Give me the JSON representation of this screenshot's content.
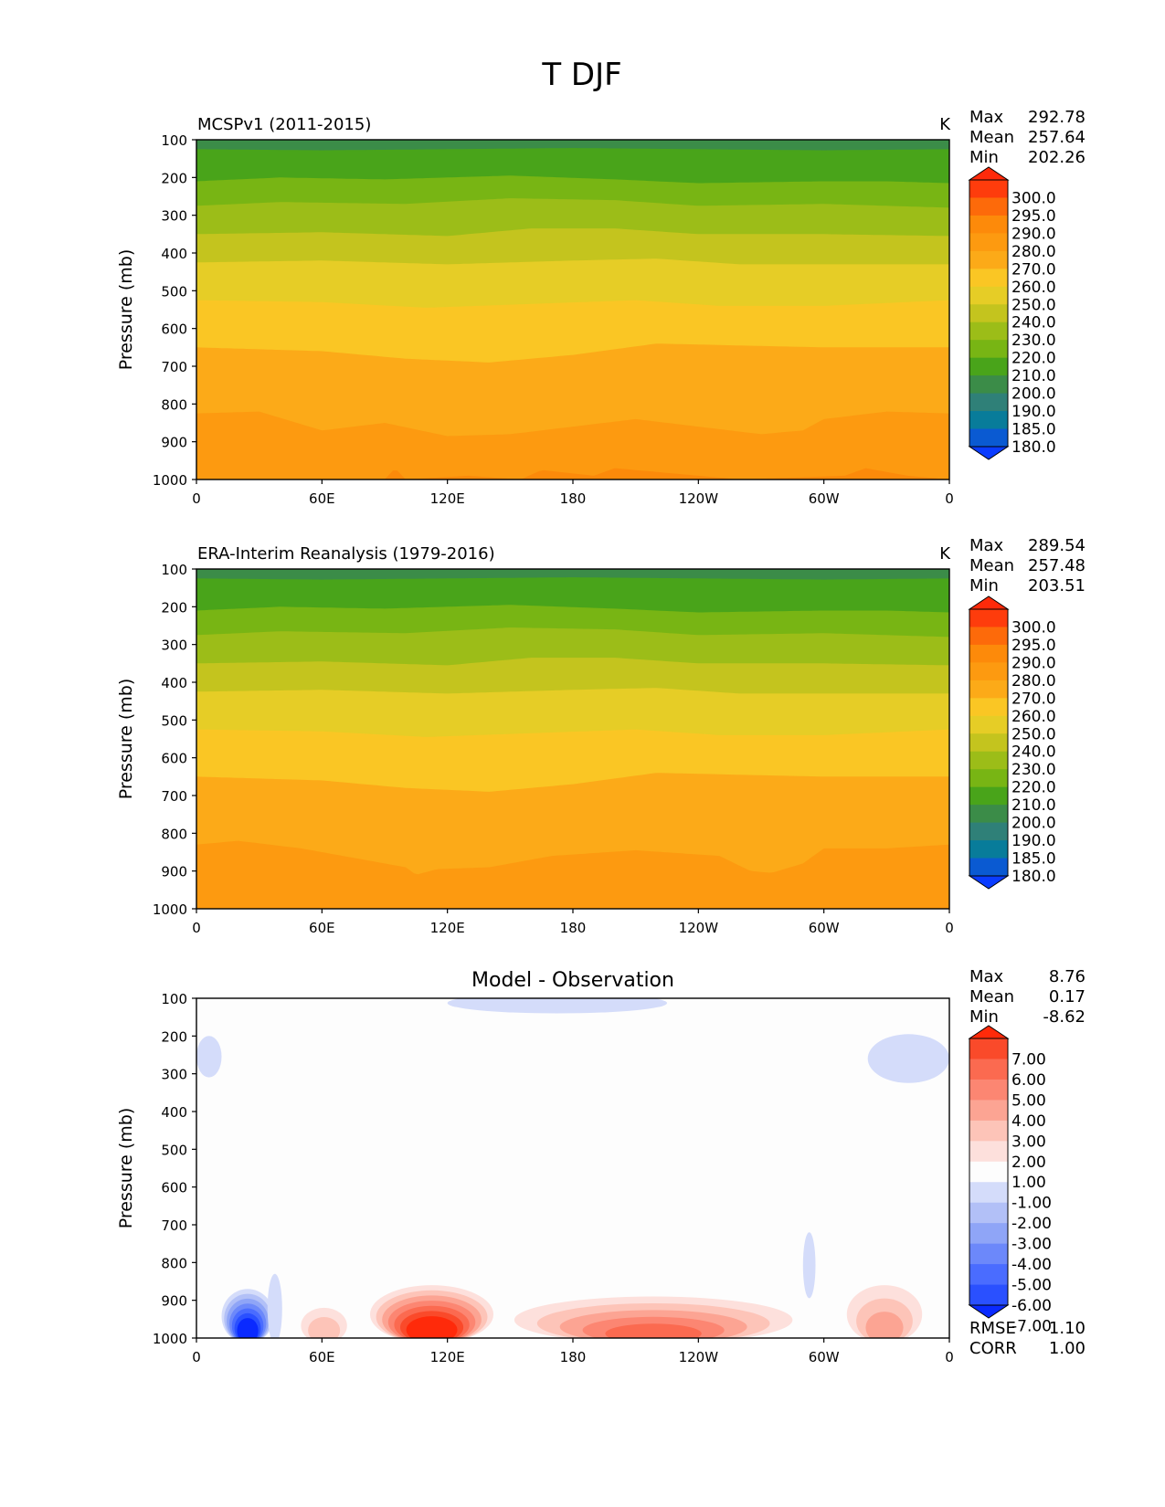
{
  "title": "T DJF",
  "chart_data": [
    {
      "type": "heatmap",
      "panel": "model",
      "title": "MCSPv1 (2011-2015)",
      "units": "K",
      "ylabel": "Pressure (mb)",
      "xlabel": "",
      "x_ticks": [
        "0",
        "60E",
        "120E",
        "180",
        "120W",
        "60W",
        "0"
      ],
      "y_ticks": [
        "100",
        "200",
        "300",
        "400",
        "500",
        "600",
        "700",
        "800",
        "900",
        "1000"
      ],
      "xlim": [
        0,
        360
      ],
      "ylim": [
        1000,
        100
      ],
      "grid": false,
      "stats": [
        {
          "label": "Max",
          "value": "292.78"
        },
        {
          "label": "Mean",
          "value": "257.64"
        },
        {
          "label": "Min",
          "value": "202.26"
        }
      ],
      "colorbar_labels": [
        "300.0",
        "295.0",
        "290.0",
        "280.0",
        "270.0",
        "260.0",
        "250.0",
        "240.0",
        "230.0",
        "220.0",
        "210.0",
        "200.0",
        "190.0",
        "185.0",
        "180.0"
      ],
      "contour_levels_K": [
        180,
        185,
        190,
        200,
        210,
        220,
        230,
        240,
        250,
        260,
        270,
        280,
        290,
        295,
        300
      ],
      "boundaries": [
        {
          "level": 200,
          "lon": [
            0,
            60,
            120,
            180,
            240,
            300,
            360
          ],
          "p": [
            125,
            128,
            125,
            122,
            125,
            128,
            125
          ]
        },
        {
          "level": 210,
          "lon": [
            0,
            40,
            90,
            150,
            200,
            240,
            300,
            330,
            360
          ],
          "p": [
            210,
            200,
            205,
            195,
            205,
            215,
            210,
            210,
            215
          ]
        },
        {
          "level": 220,
          "lon": [
            0,
            40,
            100,
            150,
            200,
            240,
            300,
            360
          ],
          "p": [
            275,
            265,
            270,
            255,
            260,
            275,
            270,
            280
          ]
        },
        {
          "level": 230,
          "lon": [
            0,
            60,
            120,
            160,
            200,
            240,
            300,
            360
          ],
          "p": [
            350,
            345,
            355,
            335,
            335,
            350,
            350,
            355
          ]
        },
        {
          "level": 240,
          "lon": [
            0,
            60,
            120,
            180,
            220,
            260,
            300,
            360
          ],
          "p": [
            425,
            420,
            430,
            420,
            415,
            430,
            430,
            430
          ]
        },
        {
          "level": 250,
          "lon": [
            0,
            60,
            110,
            160,
            210,
            250,
            300,
            360
          ],
          "p": [
            525,
            530,
            545,
            535,
            525,
            540,
            540,
            525
          ]
        },
        {
          "level": 260,
          "lon": [
            0,
            60,
            100,
            140,
            180,
            220,
            260,
            300,
            360
          ],
          "p": [
            650,
            660,
            680,
            690,
            670,
            640,
            645,
            650,
            650
          ]
        },
        {
          "level": 270,
          "lon": [
            0,
            30,
            60,
            90,
            120,
            150,
            180,
            210,
            240,
            270,
            290,
            300,
            330,
            360
          ],
          "p": [
            825,
            820,
            870,
            850,
            885,
            880,
            860,
            840,
            860,
            880,
            870,
            840,
            820,
            825
          ]
        },
        {
          "level": 280,
          "lon": [
            0,
            90,
            95,
            100,
            130,
            155,
            165,
            190,
            200,
            240,
            260,
            310,
            320,
            340,
            360
          ],
          "p": [
            1000,
            1000,
            970,
            1000,
            990,
            1000,
            975,
            990,
            970,
            990,
            1000,
            990,
            970,
            990,
            1000
          ]
        }
      ]
    },
    {
      "type": "heatmap",
      "panel": "observation",
      "title": "ERA-Interim Reanalysis (1979-2016)",
      "units": "K",
      "ylabel": "Pressure (mb)",
      "xlabel": "",
      "x_ticks": [
        "0",
        "60E",
        "120E",
        "180",
        "120W",
        "60W",
        "0"
      ],
      "y_ticks": [
        "100",
        "200",
        "300",
        "400",
        "500",
        "600",
        "700",
        "800",
        "900",
        "1000"
      ],
      "xlim": [
        0,
        360
      ],
      "ylim": [
        1000,
        100
      ],
      "grid": false,
      "stats": [
        {
          "label": "Max",
          "value": "289.54"
        },
        {
          "label": "Mean",
          "value": "257.48"
        },
        {
          "label": "Min",
          "value": "203.51"
        }
      ],
      "colorbar_labels": [
        "300.0",
        "295.0",
        "290.0",
        "280.0",
        "270.0",
        "260.0",
        "250.0",
        "240.0",
        "230.0",
        "220.0",
        "210.0",
        "200.0",
        "190.0",
        "185.0",
        "180.0"
      ],
      "contour_levels_K": [
        180,
        185,
        190,
        200,
        210,
        220,
        230,
        240,
        250,
        260,
        270,
        280,
        290,
        295,
        300
      ],
      "boundaries": [
        {
          "level": 200,
          "lon": [
            0,
            60,
            120,
            180,
            240,
            300,
            360
          ],
          "p": [
            125,
            128,
            125,
            122,
            125,
            128,
            125
          ]
        },
        {
          "level": 210,
          "lon": [
            0,
            40,
            90,
            150,
            200,
            240,
            300,
            330,
            360
          ],
          "p": [
            210,
            200,
            205,
            195,
            205,
            215,
            210,
            210,
            215
          ]
        },
        {
          "level": 220,
          "lon": [
            0,
            40,
            100,
            150,
            200,
            240,
            300,
            360
          ],
          "p": [
            275,
            265,
            270,
            255,
            260,
            275,
            270,
            280
          ]
        },
        {
          "level": 230,
          "lon": [
            0,
            60,
            120,
            160,
            200,
            240,
            300,
            360
          ],
          "p": [
            350,
            345,
            355,
            335,
            335,
            350,
            350,
            355
          ]
        },
        {
          "level": 240,
          "lon": [
            0,
            60,
            120,
            180,
            220,
            260,
            300,
            360
          ],
          "p": [
            425,
            420,
            430,
            420,
            415,
            430,
            430,
            430
          ]
        },
        {
          "level": 250,
          "lon": [
            0,
            60,
            110,
            160,
            210,
            250,
            300,
            360
          ],
          "p": [
            525,
            530,
            545,
            535,
            525,
            540,
            540,
            525
          ]
        },
        {
          "level": 260,
          "lon": [
            0,
            60,
            100,
            140,
            180,
            220,
            260,
            300,
            360
          ],
          "p": [
            650,
            660,
            680,
            690,
            670,
            640,
            645,
            650,
            650
          ]
        },
        {
          "level": 270,
          "lon": [
            0,
            20,
            50,
            80,
            100,
            105,
            115,
            140,
            170,
            210,
            250,
            265,
            275,
            290,
            300,
            330,
            360
          ],
          "p": [
            830,
            820,
            840,
            870,
            890,
            910,
            895,
            890,
            860,
            845,
            860,
            900,
            905,
            880,
            840,
            840,
            830
          ]
        }
      ]
    },
    {
      "type": "heatmap",
      "panel": "difference",
      "title": "Model - Observation",
      "units": "",
      "ylabel": "Pressure (mb)",
      "xlabel": "",
      "x_ticks": [
        "0",
        "60E",
        "120E",
        "180",
        "120W",
        "60W",
        "0"
      ],
      "y_ticks": [
        "100",
        "200",
        "300",
        "400",
        "500",
        "600",
        "700",
        "800",
        "900",
        "1000"
      ],
      "xlim": [
        0,
        360
      ],
      "ylim": [
        1000,
        100
      ],
      "grid": false,
      "stats": [
        {
          "label": "Max",
          "value": "8.76"
        },
        {
          "label": "Mean",
          "value": "0.17"
        },
        {
          "label": "Min",
          "value": "-8.62"
        }
      ],
      "metrics": [
        {
          "label": "RMSE",
          "value": "1.10"
        },
        {
          "label": "CORR",
          "value": "1.00"
        }
      ],
      "colorbar_labels": [
        "7.00",
        "6.00",
        "5.00",
        "4.00",
        "3.00",
        "2.00",
        "1.00",
        "-1.00",
        "-2.00",
        "-3.00",
        "-4.00",
        "-5.00",
        "-6.00",
        "-7.00"
      ],
      "contour_levels_K": [
        -7,
        -6,
        -5,
        -4,
        -3,
        -2,
        -1,
        1,
        2,
        3,
        4,
        5,
        6,
        7
      ],
      "anomalies": [
        {
          "sign": -1,
          "lon0": 120,
          "lon1": 225,
          "p_top": 100,
          "p_bottom": 140,
          "peak": -1.5
        },
        {
          "sign": -1,
          "lon0": 0,
          "lon1": 12,
          "p_top": 200,
          "p_bottom": 295,
          "peak": -1.5
        },
        {
          "sign": -1,
          "lon0": 321,
          "lon1": 360,
          "p_top": 195,
          "p_bottom": 310,
          "peak": -1.5
        },
        {
          "sign": -1,
          "lon0": 12,
          "lon1": 37,
          "p_top": 870,
          "p_bottom": 1000,
          "peak": -8.6
        },
        {
          "sign": -1,
          "lon0": 34,
          "lon1": 41,
          "p_top": 830,
          "p_bottom": 1000,
          "peak": -1.5
        },
        {
          "sign": -1,
          "lon0": 290,
          "lon1": 296,
          "p_top": 720,
          "p_bottom": 880,
          "peak": -1.5
        },
        {
          "sign": 1,
          "lon0": 50,
          "lon1": 72,
          "p_top": 920,
          "p_bottom": 1000,
          "peak": 2.8
        },
        {
          "sign": 1,
          "lon0": 83,
          "lon1": 142,
          "p_top": 860,
          "p_bottom": 1000,
          "peak": 8.7
        },
        {
          "sign": 1,
          "lon0": 152,
          "lon1": 285,
          "p_top": 890,
          "p_bottom": 1000,
          "peak": 5.2
        },
        {
          "sign": 1,
          "lon0": 311,
          "lon1": 347,
          "p_top": 860,
          "p_bottom": 1000,
          "peak": 3.4
        }
      ]
    }
  ]
}
